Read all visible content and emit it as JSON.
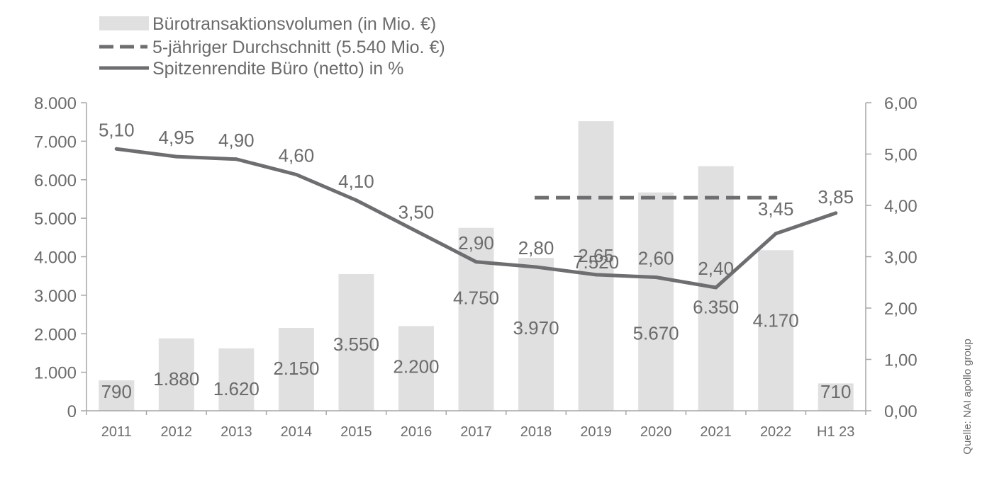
{
  "chart_data": {
    "type": "bar",
    "categories": [
      "2011",
      "2012",
      "2013",
      "2014",
      "2015",
      "2016",
      "2017",
      "2018",
      "2019",
      "2020",
      "2021",
      "2022",
      "H1 23"
    ],
    "series": [
      {
        "name": "Bürotransaktionsvolumen (in Mio. €)",
        "type": "bar",
        "axis": "left",
        "values": [
          790,
          1880,
          1620,
          2150,
          3550,
          2200,
          4750,
          3970,
          7520,
          5670,
          6350,
          4170,
          710
        ],
        "labels": [
          "790",
          "1.880",
          "1.620",
          "2.150",
          "3.550",
          "2.200",
          "4.750",
          "3.970",
          "7.520",
          "5.670",
          "6.350",
          "4.170",
          "710"
        ]
      },
      {
        "name": "5-jähriger Durchschnitt (5.540 Mio. €)",
        "type": "line-dashed",
        "axis": "right",
        "from_category": "2018",
        "to_category": "2022",
        "value": 4.15
      },
      {
        "name": "Spitzenrendite Büro (netto) in %",
        "type": "line",
        "axis": "right",
        "values": [
          5.1,
          4.95,
          4.9,
          4.6,
          4.1,
          3.5,
          2.9,
          2.8,
          2.65,
          2.6,
          2.4,
          3.45,
          3.85
        ],
        "labels": [
          "5,10",
          "4,95",
          "4,90",
          "4,60",
          "4,10",
          "3,50",
          "2,90",
          "2,80",
          "2,65",
          "2,60",
          "2,40",
          "3,45",
          "3,85"
        ]
      }
    ],
    "y_left": {
      "ylim": [
        0,
        8000
      ],
      "ticks": [
        0,
        1000,
        2000,
        3000,
        4000,
        5000,
        6000,
        7000,
        8000
      ],
      "tick_labels": [
        "0",
        "1.000",
        "2.000",
        "3.000",
        "4.000",
        "5.000",
        "6.000",
        "7.000",
        "8.000"
      ]
    },
    "y_right": {
      "ylim": [
        0,
        6
      ],
      "ticks": [
        0,
        1,
        2,
        3,
        4,
        5,
        6
      ],
      "tick_labels": [
        "0,00",
        "1,00",
        "2,00",
        "3,00",
        "4,00",
        "5,00",
        "6,00"
      ]
    },
    "legend": {
      "position": "top-left",
      "entries": [
        "Bürotransaktionsvolumen (in Mio. €)",
        "5-jähriger Durchschnitt (5.540 Mio. €)",
        "Spitzenrendite Büro (netto) in %"
      ]
    },
    "source": "Quelle: NAI apollo group",
    "title": "",
    "xlabel": "",
    "ylabel": "",
    "grid": false
  },
  "colors": {
    "bar": "#e0e0e0",
    "line": "#6e6e70",
    "dashed": "#6e6e70",
    "axis": "#a6a6a6",
    "text": "#6b6b6b"
  }
}
